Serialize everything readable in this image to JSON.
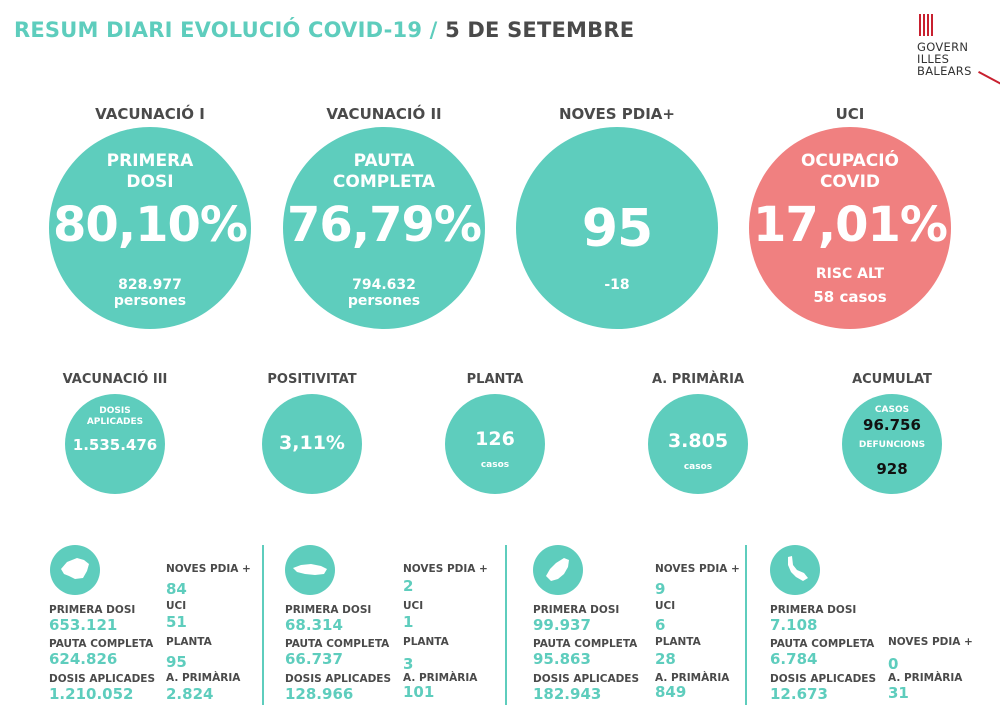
{
  "header": {
    "title_main": "RESUM DIARI EVOLUCIÓ COVID-19 /",
    "title_date": "5 DE SETEMBRE",
    "logo_lines": [
      "GOVERN",
      "ILLES",
      "BALEARS"
    ]
  },
  "colors": {
    "teal": "#5ecdbd",
    "red": "#f08080",
    "text": "#4a4a4a",
    "logo_red": "#c8202f"
  },
  "big": [
    {
      "label": "VACUNACIÓ I",
      "sub1": "PRIMERA",
      "sub2": "DOSI",
      "value": "80,10%",
      "small1": "828.977",
      "small2": "persones"
    },
    {
      "label": "VACUNACIÓ II",
      "sub1": "PAUTA",
      "sub2": "COMPLETA",
      "value": "76,79%",
      "small1": "794.632",
      "small2": "persones"
    },
    {
      "label": "NOVES PDIA+",
      "value": "95",
      "small1": "-18"
    },
    {
      "label": "UCI",
      "sub1": "OCUPACIÓ",
      "sub2": "COVID",
      "value": "17,01%",
      "small1": "RISC ALT",
      "small2": "58 casos"
    }
  ],
  "mid": [
    {
      "label": "VACUNACIÓ III",
      "sub1": "DOSIS",
      "sub2": "APLICADES",
      "value": "1.535.476"
    },
    {
      "label": "POSITIVITAT",
      "value": "3,11%"
    },
    {
      "label": "PLANTA",
      "value": "126",
      "unit": "casos"
    },
    {
      "label": "A. PRIMÀRIA",
      "value": "3.805",
      "unit": "casos"
    },
    {
      "label": "ACUMULAT",
      "l1": "CASOS",
      "v1": "96.756",
      "l2": "DEFUNCIONS",
      "v2": "928"
    }
  ],
  "labels": {
    "primera_dosi": "PRIMERA DOSI",
    "pauta_completa": "PAUTA COMPLETA",
    "dosis_aplicades": "DOSIS APLICADES",
    "noves_pdia": "NOVES PDIA +",
    "uci": "UCI",
    "planta": "PLANTA",
    "a_primaria": "A. PRIMÀRIA"
  },
  "islands": [
    {
      "icon": "mallorca-icon",
      "primera_dosi": "653.121",
      "pauta_completa": "624.826",
      "dosis_aplicades": "1.210.052",
      "noves_pdia": "84",
      "uci": "51",
      "planta": "95",
      "a_primaria": "2.824"
    },
    {
      "icon": "menorca-icon",
      "primera_dosi": "68.314",
      "pauta_completa": "66.737",
      "dosis_aplicades": "128.966",
      "noves_pdia": "2",
      "uci": "1",
      "planta": "3",
      "a_primaria": "101"
    },
    {
      "icon": "eivissa-icon",
      "primera_dosi": "99.937",
      "pauta_completa": "95.863",
      "dosis_aplicades": "182.943",
      "noves_pdia": "9",
      "uci": "6",
      "planta": "28",
      "a_primaria": "849"
    },
    {
      "icon": "formentera-icon",
      "primera_dosi": "7.108",
      "pauta_completa": "6.784",
      "dosis_aplicades": "12.673",
      "noves_pdia": "0",
      "a_primaria": "31"
    }
  ]
}
